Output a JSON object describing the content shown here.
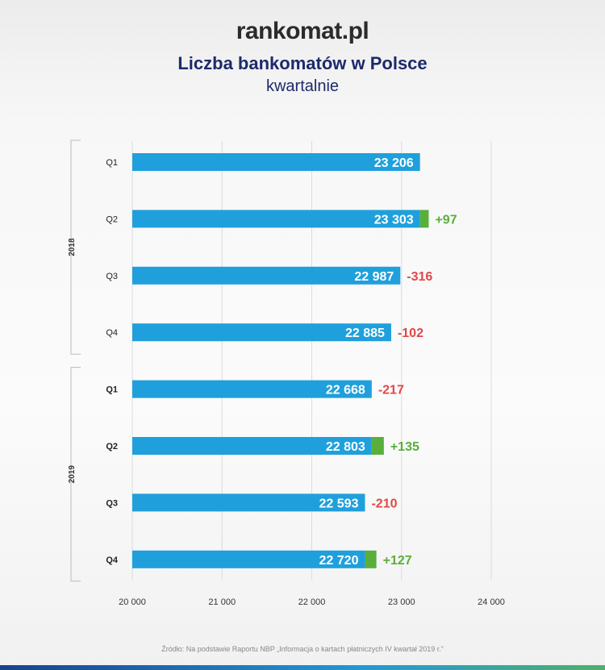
{
  "logo": "rankomat.pl",
  "chart_data": {
    "type": "bar",
    "orientation": "horizontal",
    "title": "Liczba bankomatów w Polsce",
    "subtitle": "kwartalnie",
    "groups": [
      {
        "label": "2018",
        "quarters": [
          "Q1",
          "Q2",
          "Q3",
          "Q4"
        ]
      },
      {
        "label": "2019",
        "quarters": [
          "Q1",
          "Q2",
          "Q3",
          "Q4"
        ]
      }
    ],
    "categories": [
      "Q1 2018",
      "Q2 2018",
      "Q3 2018",
      "Q4 2018",
      "Q1 2019",
      "Q2 2019",
      "Q3 2019",
      "Q4 2019"
    ],
    "quarter_labels": [
      "Q1",
      "Q2",
      "Q3",
      "Q4",
      "Q1",
      "Q2",
      "Q3",
      "Q4"
    ],
    "values": [
      23206,
      23303,
      22987,
      22885,
      22668,
      22803,
      22593,
      22720
    ],
    "value_labels": [
      "23 206",
      "23 303",
      "22 987",
      "22 885",
      "22 668",
      "22 803",
      "22 593",
      "22 720"
    ],
    "changes": [
      null,
      97,
      -316,
      -102,
      -217,
      135,
      -210,
      127
    ],
    "change_labels": [
      "",
      "+97",
      "-316",
      "-102",
      "-217",
      "+135",
      "-210",
      "+127"
    ],
    "xlim": [
      20000,
      24000
    ],
    "xticks": [
      20000,
      21000,
      22000,
      23000,
      24000
    ],
    "xtick_labels": [
      "20 000",
      "21 000",
      "22 000",
      "23 000",
      "24 000"
    ],
    "grid": true,
    "colors": {
      "bar": "#1fa0dc",
      "increase": "#5aae3c",
      "decrease": "#e04848"
    }
  },
  "source": "Źródło: Na podstawie Raportu NBP „Informacja o kartach płatniczych IV kwartał 2019 r.”"
}
